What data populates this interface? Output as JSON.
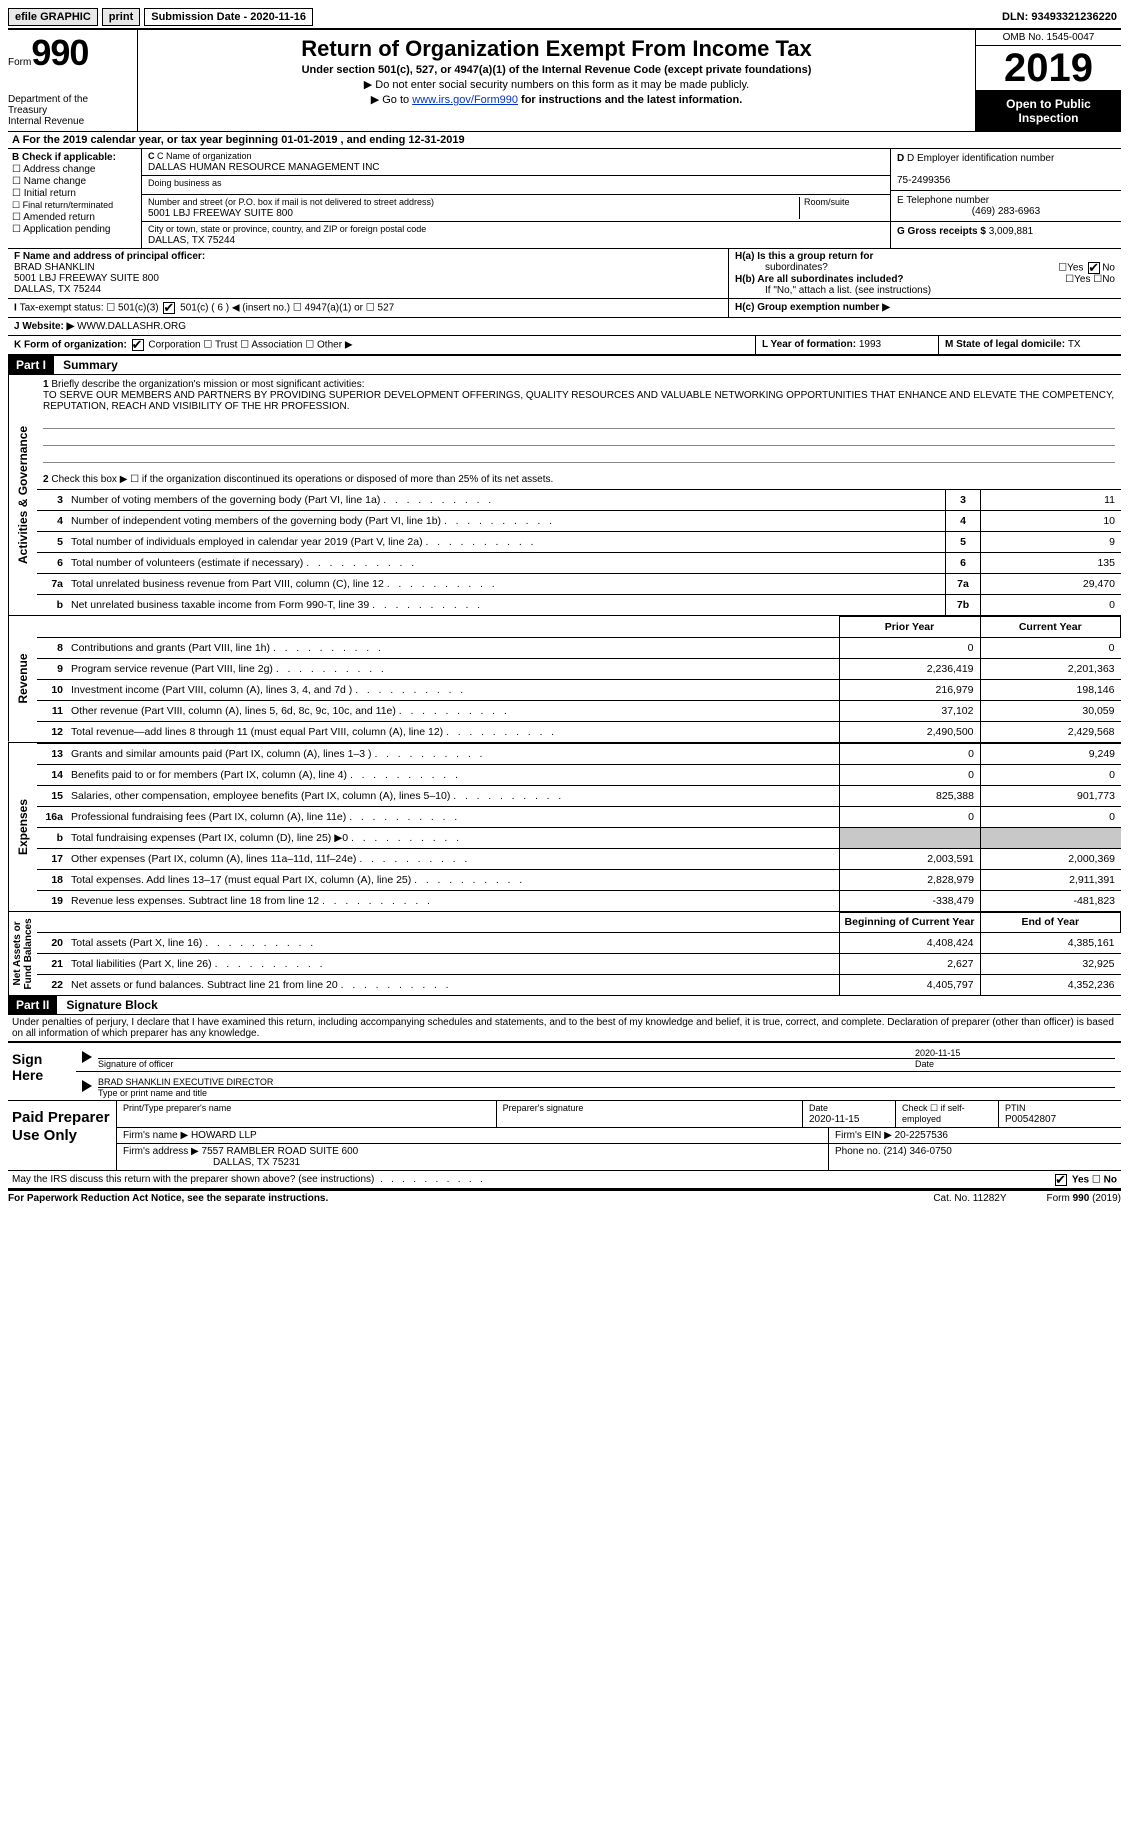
{
  "topbar": {
    "efile": "efile GRAPHIC",
    "print": "print",
    "submission_label": "Submission Date - ",
    "submission_date": "2020-11-16",
    "dln_label": "DLN: ",
    "dln": "93493321236220"
  },
  "header": {
    "form_word": "Form",
    "form_num": "990",
    "dept1": "Department of the",
    "dept2": "Treasury",
    "dept3": "Internal Revenue",
    "title": "Return of Organization Exempt From Income Tax",
    "sub1": "Under section 501(c), 527, or 4947(a)(1) of the Internal Revenue Code (except private foundations)",
    "sub2": "▶ Do not enter social security numbers on this form as it may be made publicly.",
    "sub3_pre": "▶ Go to ",
    "sub3_link": "www.irs.gov/Form990",
    "sub3_post": " for instructions and the latest information.",
    "omb": "OMB No. 1545-0047",
    "year": "2019",
    "open1": "Open to Public",
    "open2": "Inspection"
  },
  "period": {
    "text_pre": "A For the 2019 calendar year, or tax year beginning ",
    "begin": "01-01-2019",
    "mid": " , and ending ",
    "end": "12-31-2019"
  },
  "boxB": {
    "header": "B Check if applicable:",
    "items": [
      "Address change",
      "Name change",
      "Initial return",
      "Final return/terminated",
      "Amended return",
      "Application pending"
    ]
  },
  "boxC": {
    "label": "C Name of organization",
    "org": "DALLAS HUMAN RESOURCE MANAGEMENT INC",
    "dba_label": "Doing business as",
    "addr_label": "Number and street (or P.O. box if mail is not delivered to street address)",
    "room_label": "Room/suite",
    "addr": "5001 LBJ FREEWAY SUITE 800",
    "city_label": "City or town, state or province, country, and ZIP or foreign postal code",
    "city": "DALLAS, TX  75244"
  },
  "boxD": {
    "label": "D Employer identification number",
    "value": "75-2499356"
  },
  "boxE": {
    "label": "E Telephone number",
    "value": "(469) 283-6963"
  },
  "boxG": {
    "label": "G Gross receipts $ ",
    "value": "3,009,881"
  },
  "boxF": {
    "label": "F  Name and address of principal officer:",
    "name": "BRAD SHANKLIN",
    "addr1": "5001 LBJ FREEWAY SUITE 800",
    "addr2": "DALLAS, TX  75244"
  },
  "boxH": {
    "ha": "H(a)  Is this a group return for",
    "ha2": "subordinates?",
    "hb": "H(b)  Are all subordinates included?",
    "hnote": "If \"No,\" attach a list. (see instructions)",
    "hc": "H(c)  Group exemption number ▶",
    "yes": "Yes",
    "no": "No"
  },
  "taxexempt": {
    "label": "Tax-exempt status:",
    "c3": "501(c)(3)",
    "c_other_pre": "501(c) ( ",
    "c_other_num": "6",
    "c_other_post": " ) ◀ (insert no.)",
    "a4947": "4947(a)(1) or",
    "s527": "527"
  },
  "boxJ": {
    "label": "J    Website: ▶",
    "value": "WWW.DALLASHR.ORG"
  },
  "boxK": {
    "label": "K Form of organization:",
    "corp": "Corporation",
    "trust": "Trust",
    "assoc": "Association",
    "other": "Other ▶"
  },
  "boxL": {
    "label": "L Year of formation: ",
    "value": "1993"
  },
  "boxM": {
    "label": "M State of legal domicile: ",
    "value": "TX"
  },
  "part1": {
    "header": "Part I",
    "title": "Summary"
  },
  "summary": {
    "line1_label": "Briefly describe the organization's mission or most significant activities:",
    "line1_text": "TO SERVE OUR MEMBERS AND PARTNERS BY PROVIDING SUPERIOR DEVELOPMENT OFFERINGS, QUALITY RESOURCES AND VALUABLE NETWORKING OPPORTUNITIES THAT ENHANCE AND ELEVATE THE COMPETENCY, REPUTATION, REACH AND VISIBILITY OF THE HR PROFESSION.",
    "line2": "Check this box ▶ ☐  if the organization discontinued its operations or disposed of more than 25% of its net assets."
  },
  "govlines": [
    {
      "n": "3",
      "num": "3",
      "desc": "Number of voting members of the governing body (Part VI, line 1a)",
      "val": "11"
    },
    {
      "n": "4",
      "num": "4",
      "desc": "Number of independent voting members of the governing body (Part VI, line 1b)",
      "val": "10"
    },
    {
      "n": "5",
      "num": "5",
      "desc": "Total number of individuals employed in calendar year 2019 (Part V, line 2a)",
      "val": "9"
    },
    {
      "n": "6",
      "num": "6",
      "desc": "Total number of volunteers (estimate if necessary)",
      "val": "135"
    },
    {
      "n": "7a",
      "num": "7a",
      "desc": "Total unrelated business revenue from Part VIII, column (C), line 12",
      "val": "29,470"
    },
    {
      "n": "b",
      "num": "7b",
      "desc": "Net unrelated business taxable income from Form 990-T, line 39",
      "val": "0"
    }
  ],
  "twocol_headers": {
    "prior": "Prior Year",
    "current": "Current Year"
  },
  "revenue": [
    {
      "n": "8",
      "desc": "Contributions and grants (Part VIII, line 1h)",
      "p": "0",
      "c": "0"
    },
    {
      "n": "9",
      "desc": "Program service revenue (Part VIII, line 2g)",
      "p": "2,236,419",
      "c": "2,201,363"
    },
    {
      "n": "10",
      "desc": "Investment income (Part VIII, column (A), lines 3, 4, and 7d )",
      "p": "216,979",
      "c": "198,146"
    },
    {
      "n": "11",
      "desc": "Other revenue (Part VIII, column (A), lines 5, 6d, 8c, 9c, 10c, and 11e)",
      "p": "37,102",
      "c": "30,059"
    },
    {
      "n": "12",
      "desc": "Total revenue—add lines 8 through 11 (must equal Part VIII, column (A), line 12)",
      "p": "2,490,500",
      "c": "2,429,568"
    }
  ],
  "expenses": [
    {
      "n": "13",
      "desc": "Grants and similar amounts paid (Part IX, column (A), lines 1–3 )",
      "p": "0",
      "c": "9,249"
    },
    {
      "n": "14",
      "desc": "Benefits paid to or for members (Part IX, column (A), line 4)",
      "p": "0",
      "c": "0"
    },
    {
      "n": "15",
      "desc": "Salaries, other compensation, employee benefits (Part IX, column (A), lines 5–10)",
      "p": "825,388",
      "c": "901,773"
    },
    {
      "n": "16a",
      "desc": "Professional fundraising fees (Part IX, column (A), line 11e)",
      "p": "0",
      "c": "0"
    },
    {
      "n": "b",
      "desc": "Total fundraising expenses (Part IX, column (D), line 25) ▶0",
      "p": "",
      "c": "",
      "grey": true
    },
    {
      "n": "17",
      "desc": "Other expenses (Part IX, column (A), lines 11a–11d, 11f–24e)",
      "p": "2,003,591",
      "c": "2,000,369"
    },
    {
      "n": "18",
      "desc": "Total expenses. Add lines 13–17 (must equal Part IX, column (A), line 25)",
      "p": "2,828,979",
      "c": "2,911,391"
    },
    {
      "n": "19",
      "desc": "Revenue less expenses. Subtract line 18 from line 12",
      "p": "-338,479",
      "c": "-481,823"
    }
  ],
  "netassets_headers": {
    "begin": "Beginning of Current Year",
    "end": "End of Year"
  },
  "netassets": [
    {
      "n": "20",
      "desc": "Total assets (Part X, line 16)",
      "p": "4,408,424",
      "c": "4,385,161"
    },
    {
      "n": "21",
      "desc": "Total liabilities (Part X, line 26)",
      "p": "2,627",
      "c": "32,925"
    },
    {
      "n": "22",
      "desc": "Net assets or fund balances. Subtract line 21 from line 20",
      "p": "4,405,797",
      "c": "4,352,236"
    }
  ],
  "sidelabels": {
    "gov": "Activities & Governance",
    "rev": "Revenue",
    "exp": "Expenses",
    "net": "Net Assets or\nFund Balances"
  },
  "part2": {
    "header": "Part II",
    "title": "Signature Block",
    "decl": "Under penalties of perjury, I declare that I have examined this return, including accompanying schedules and statements, and to the best of my knowledge and belief, it is true, correct, and complete. Declaration of preparer (other than officer) is based on all information of which preparer has any knowledge."
  },
  "sign": {
    "left": "Sign Here",
    "sig_label": "Signature of officer",
    "date": "2020-11-15",
    "date_label": "Date",
    "name_title": "BRAD SHANKLIN  EXECUTIVE DIRECTOR",
    "name_label": "Type or print name and title"
  },
  "prep": {
    "left": "Paid Preparer Use Only",
    "h1": "Print/Type preparer's name",
    "h2": "Preparer's signature",
    "h3_label": "Date",
    "h3": "2020-11-15",
    "h4": "Check ☐ if self-employed",
    "h5_label": "PTIN",
    "h5": "P00542807",
    "firm_label": "Firm's name    ▶ ",
    "firm": "HOWARD LLP",
    "ein_label": "Firm's EIN ▶ ",
    "ein": "20-2257536",
    "addr_label": "Firm's address ▶ ",
    "addr1": "7557 RAMBLER ROAD SUITE 600",
    "addr2": "DALLAS, TX  75231",
    "phone_label": "Phone no. ",
    "phone": "(214) 346-0750"
  },
  "discuss": {
    "text": "May the IRS discuss this return with the preparer shown above? (see instructions)",
    "yes": "Yes",
    "no": "No"
  },
  "footer": {
    "left": "For Paperwork Reduction Act Notice, see the separate instructions.",
    "cat": "Cat. No. 11282Y",
    "right": "Form 990 (2019)"
  }
}
